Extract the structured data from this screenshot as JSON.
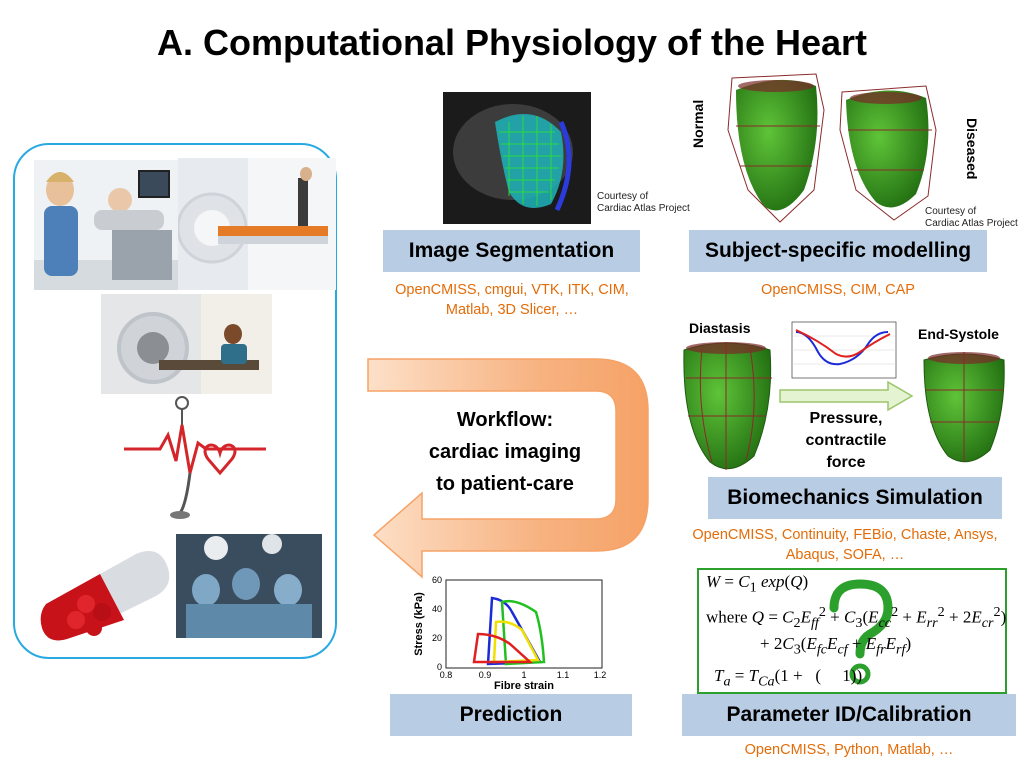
{
  "title": "A. Computational Physiology of the Heart",
  "boxes": {
    "image_segmentation": "Image Segmentation",
    "subject_specific": "Subject-specific modelling",
    "biomechanics": "Biomechanics Simulation",
    "prediction": "Prediction",
    "parameter_id": "Parameter ID/Calibration"
  },
  "tools": {
    "segmentation_line1": "OpenCMISS, cmgui, VTK, ITK, CIM,",
    "segmentation_line2": "Matlab, 3D Slicer, …",
    "subject_specific": "OpenCMISS, CIM, CAP",
    "biomechanics_line1": "OpenCMISS, Continuity, FEBio, Chaste, Ansys,",
    "biomechanics_line2": "Abaqus, SOFA, …",
    "parameter_id": "OpenCMISS, Python, Matlab, …"
  },
  "courtesy": {
    "line1": "Courtesy of",
    "line2": "Cardiac Atlas Project"
  },
  "hearts": {
    "normal": "Normal",
    "diseased": "Diseased",
    "diastasis": "Diastasis",
    "end_systole": "End-Systole",
    "force_line1": "Pressure,",
    "force_line2": "contractile",
    "force_line3": "force"
  },
  "workflow": {
    "line1": "Workflow:",
    "line2": "cardiac imaging",
    "line3": "to patient-care"
  },
  "prediction_plot": {
    "ylabel": "Stress (kPa)",
    "xlabel": "Fibre strain",
    "yticks": [
      "60",
      "40",
      "20",
      "0"
    ],
    "xticks": [
      "0.8",
      "0.9",
      "1",
      "1.1",
      "1.2"
    ]
  },
  "colors": {
    "accent_orange": "#e36c09",
    "box_blue": "#b8cce4",
    "frame_blue": "#29a9e1",
    "formula_green": "#2ca02c",
    "heart_green": "#3a9a1e"
  }
}
